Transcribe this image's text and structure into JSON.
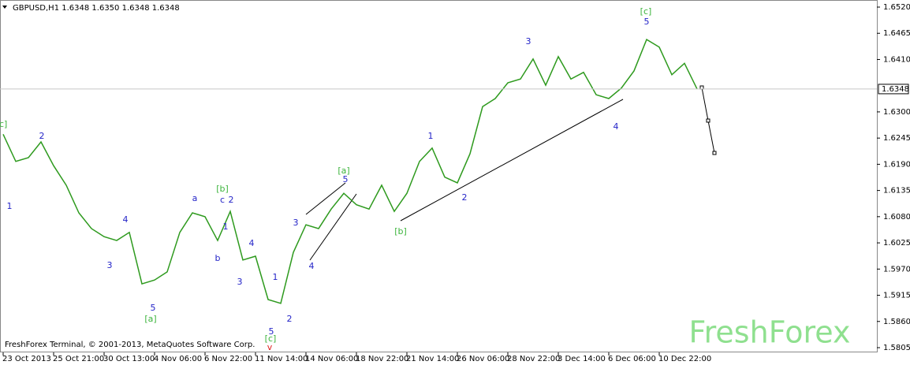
{
  "chart_data": {
    "type": "line",
    "title": "GBPUSD,H1 1.6348 1.6350 1.6348 1.6348",
    "footer": "FreshForex Terminal, © 2001-2013, MetaQuotes Software Corp.",
    "watermark": "FreshForex",
    "categories": [
      "23 Oct 2013",
      null,
      null,
      null,
      "25 Oct 21:00",
      null,
      null,
      null,
      "30 Oct 13:00",
      null,
      null,
      null,
      "4 Nov 06:00",
      null,
      null,
      null,
      "6 Nov 22:00",
      null,
      null,
      null,
      "11 Nov 14:00",
      null,
      null,
      null,
      "14 Nov 06:00",
      null,
      null,
      null,
      "18 Nov 22:00",
      null,
      null,
      null,
      "21 Nov 14:00",
      null,
      null,
      null,
      "26 Nov 06:00",
      null,
      null,
      null,
      "28 Nov 22:00",
      null,
      null,
      null,
      "3 Dec 14:00",
      null,
      null,
      null,
      "6 Dec 06:00",
      null,
      null,
      null,
      "10 Dec 22:00",
      null,
      null,
      null
    ],
    "series": [
      {
        "name": "GBPUSD",
        "color": "#2e9a1e",
        "values": [
          1.6253,
          1.6196,
          1.6204,
          1.6237,
          1.6187,
          1.6146,
          1.6088,
          1.6055,
          1.6038,
          1.603,
          1.6047,
          1.5939,
          1.5947,
          1.5964,
          1.6047,
          1.6088,
          1.608,
          1.603,
          1.6091,
          1.5989,
          1.5997,
          1.5906,
          1.5898,
          1.6005,
          1.6063,
          1.6055,
          1.6096,
          1.6129,
          1.6105,
          1.6096,
          1.6146,
          1.6091,
          1.6129,
          1.6196,
          1.6224,
          1.6163,
          1.6151,
          1.6212,
          1.6311,
          1.6328,
          1.6361,
          1.6369,
          1.6411,
          1.6356,
          1.6416,
          1.6369,
          1.6383,
          1.6336,
          1.6328,
          1.635,
          1.6386,
          1.6452,
          1.6436,
          1.6378,
          1.6402,
          1.6348
        ]
      }
    ],
    "last_price": 1.6348,
    "ylim": [
      1.5805,
      1.652
    ],
    "yticks": [
      {
        "value": 1.652,
        "label": "1.6520"
      },
      {
        "value": 1.6465,
        "label": "1.6465"
      },
      {
        "value": 1.641,
        "label": "1.6410"
      },
      {
        "value": 1.63,
        "label": "1.6300"
      },
      {
        "value": 1.6245,
        "label": "1.6245"
      },
      {
        "value": 1.619,
        "label": "1.6190"
      },
      {
        "value": 1.6135,
        "label": "1.6135"
      },
      {
        "value": 1.608,
        "label": "1.6080"
      },
      {
        "value": 1.6025,
        "label": "1.6025"
      },
      {
        "value": 1.597,
        "label": "1.5970"
      },
      {
        "value": 1.5915,
        "label": "1.5915"
      },
      {
        "value": 1.586,
        "label": "1.5860"
      },
      {
        "value": 1.5805,
        "label": "1.5805"
      }
    ],
    "annotations": [
      {
        "text": "[c]",
        "color": "#3cb43c"
      },
      {
        "text": "1",
        "color": "#2424c8"
      },
      {
        "text": "2",
        "color": "#2424c8"
      },
      {
        "text": "4",
        "color": "#2424c8"
      },
      {
        "text": "3",
        "color": "#2424c8"
      },
      {
        "text": "5",
        "color": "#2424c8"
      },
      {
        "text": "[a]",
        "color": "#3cb43c"
      },
      {
        "text": "a",
        "color": "#2424c8"
      },
      {
        "text": "[b]",
        "color": "#3cb43c"
      },
      {
        "text": "c",
        "color": "#2424c8"
      },
      {
        "text": "2",
        "color": "#2424c8"
      },
      {
        "text": "1",
        "color": "#2424c8"
      },
      {
        "text": "b",
        "color": "#2424c8"
      },
      {
        "text": "3",
        "color": "#2424c8"
      },
      {
        "text": "4",
        "color": "#2424c8"
      },
      {
        "text": "1",
        "color": "#2424c8"
      },
      {
        "text": "5",
        "color": "#2424c8"
      },
      {
        "text": "2",
        "color": "#2424c8"
      },
      {
        "text": "[c]",
        "color": "#3cb43c"
      },
      {
        "text": "v",
        "color": "#e02020"
      },
      {
        "text": "3",
        "color": "#2424c8"
      },
      {
        "text": "4",
        "color": "#2424c8"
      },
      {
        "text": "5",
        "color": "#2424c8"
      },
      {
        "text": "[a]",
        "color": "#3cb43c"
      },
      {
        "text": "[b]",
        "color": "#3cb43c"
      },
      {
        "text": "1",
        "color": "#2424c8"
      },
      {
        "text": "2",
        "color": "#2424c8"
      },
      {
        "text": "3",
        "color": "#2424c8"
      },
      {
        "text": "4",
        "color": "#2424c8"
      },
      {
        "text": "5",
        "color": "#2424c8"
      },
      {
        "text": "[c]",
        "color": "#3cb43c"
      }
    ]
  }
}
